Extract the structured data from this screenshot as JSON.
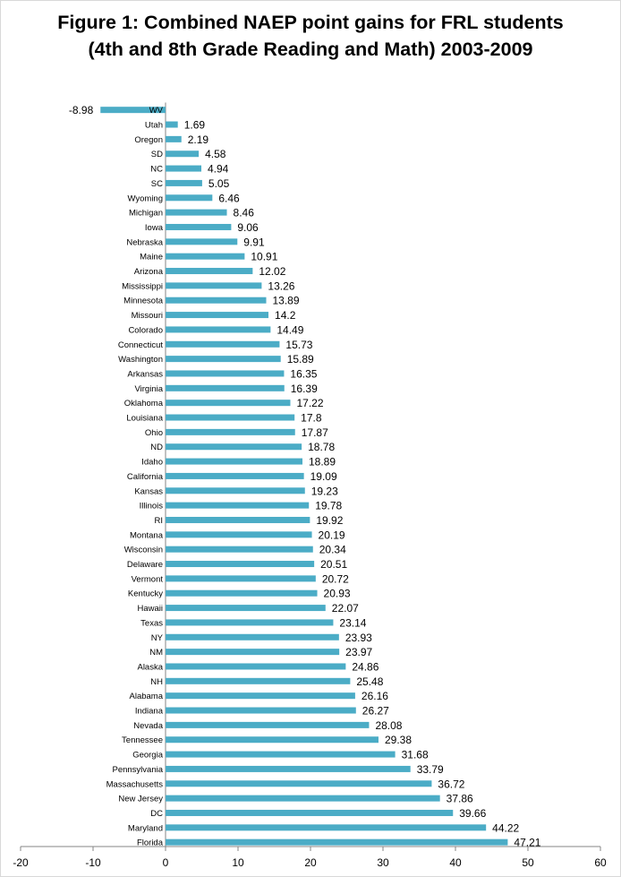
{
  "chart_data": {
    "type": "bar",
    "orientation": "horizontal",
    "title_lines": [
      "Figure 1: Combined NAEP point gains for FRL students",
      "(4th and 8th Grade Reading and Math) 2003-2009"
    ],
    "categories": [
      "WV",
      "Utah",
      "Oregon",
      "SD",
      "NC",
      "SC",
      "Wyoming",
      "Michigan",
      "Iowa",
      "Nebraska",
      "Maine",
      "Arizona",
      "Mississippi",
      "Minnesota",
      "Missouri",
      "Colorado",
      "Connecticut",
      "Washington",
      "Arkansas",
      "Virginia",
      "Oklahoma",
      "Louisiana",
      "Ohio",
      "ND",
      "Idaho",
      "California",
      "Kansas",
      "Illinois",
      "RI",
      "Montana",
      "Wisconsin",
      "Delaware",
      "Vermont",
      "Kentucky",
      "Hawaii",
      "Texas",
      "NY",
      "NM",
      "Alaska",
      "NH",
      "Alabama",
      "Indiana",
      "Nevada",
      "Tennessee",
      "Georgia",
      "Pennsylvania",
      "Massachusetts",
      "New Jersey",
      "DC",
      "Maryland",
      "Florida"
    ],
    "values": [
      -8.98,
      1.69,
      2.19,
      4.58,
      4.94,
      5.05,
      6.46,
      8.46,
      9.06,
      9.91,
      10.91,
      12.02,
      13.26,
      13.89,
      14.2,
      14.49,
      15.73,
      15.89,
      16.35,
      16.39,
      17.22,
      17.8,
      17.87,
      18.78,
      18.89,
      19.09,
      19.23,
      19.78,
      19.92,
      20.19,
      20.34,
      20.51,
      20.72,
      20.93,
      22.07,
      23.14,
      23.93,
      23.97,
      24.86,
      25.48,
      26.16,
      26.27,
      28.08,
      29.38,
      31.68,
      33.79,
      36.72,
      37.86,
      39.66,
      44.22,
      47.21
    ],
    "data_labels": [
      "-8.98",
      "1.69",
      "2.19",
      "4.58",
      "4.94",
      "5.05",
      "6.46",
      "8.46",
      "9.06",
      "9.91",
      "10.91",
      "12.02",
      "13.26",
      "13.89",
      "14.2",
      "14.49",
      "15.73",
      "15.89",
      "16.35",
      "16.39",
      "17.22",
      "17.8",
      "17.87",
      "18.78",
      "18.89",
      "19.09",
      "19.23",
      "19.78",
      "19.92",
      "20.19",
      "20.34",
      "20.51",
      "20.72",
      "20.93",
      "22.07",
      "23.14",
      "23.93",
      "23.97",
      "24.86",
      "25.48",
      "26.16",
      "26.27",
      "28.08",
      "29.38",
      "31.68",
      "33.79",
      "36.72",
      "37.86",
      "39.66",
      "44.22",
      "47.21"
    ],
    "xlim": [
      -20,
      60
    ],
    "x_ticks": [
      "-20",
      "-10",
      "0",
      "10",
      "20",
      "30",
      "40",
      "50",
      "60"
    ],
    "bar_color": "#4bacc6",
    "grid": false,
    "legend": "none"
  }
}
